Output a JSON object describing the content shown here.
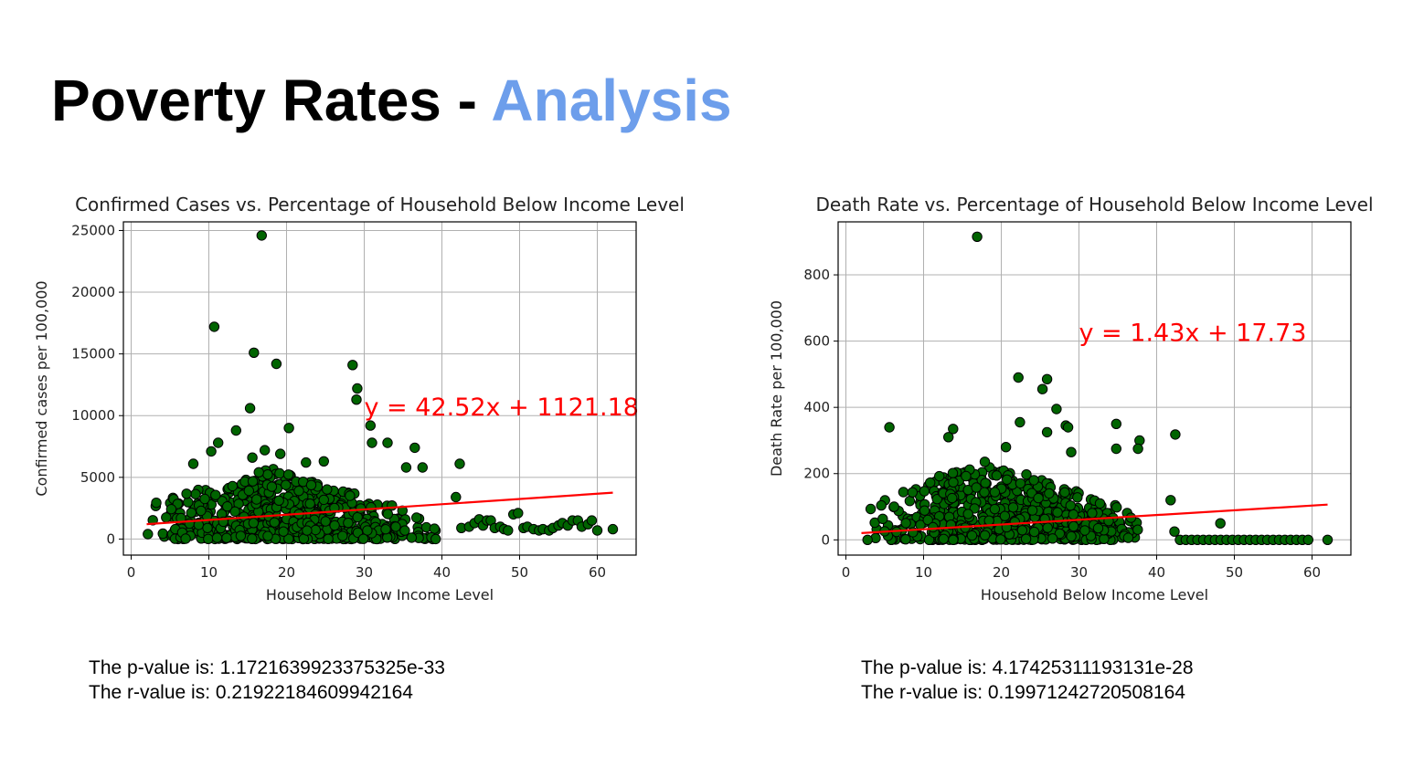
{
  "slide": {
    "title_main": "Poverty Rates - ",
    "title_accent": "Analysis",
    "title_accent_color": "#6d9eeb"
  },
  "chart_data": [
    {
      "type": "scatter",
      "title": "Confirmed Cases vs. Percentage of Household Below Income Level",
      "xlabel": "Household Below Income Level",
      "ylabel": "Confirmed cases per 100,000",
      "xlim": [
        -1,
        65
      ],
      "ylim": [
        -1300,
        25700
      ],
      "xticks": [
        0,
        10,
        20,
        30,
        40,
        50,
        60
      ],
      "yticks": [
        0,
        5000,
        10000,
        15000,
        20000,
        25000
      ],
      "grid": true,
      "point_color": "#006400",
      "point_edge_color": "#000000",
      "regression": {
        "slope": 42.52,
        "intercept": 1121.18,
        "x_range": [
          2,
          62
        ],
        "equation": "y = 42.52x + 1121.18",
        "equation_pos": [
          30,
          10000
        ],
        "color": "#ff0000"
      },
      "cluster": {
        "n": 700,
        "x_range": [
          2,
          40
        ],
        "x_peak": 18,
        "y_max": 5800,
        "seed": 7
      },
      "points": [
        [
          16.8,
          24600
        ],
        [
          10.7,
          17200
        ],
        [
          15.8,
          15100
        ],
        [
          18.7,
          14200
        ],
        [
          28.5,
          14100
        ],
        [
          29.1,
          12200
        ],
        [
          29.0,
          11300
        ],
        [
          15.3,
          10600
        ],
        [
          30.8,
          9200
        ],
        [
          20.3,
          9000
        ],
        [
          13.5,
          8800
        ],
        [
          31.0,
          7800
        ],
        [
          33.0,
          7800
        ],
        [
          11.2,
          7800
        ],
        [
          10.3,
          7100
        ],
        [
          36.5,
          7400
        ],
        [
          15.6,
          6600
        ],
        [
          17.2,
          7200
        ],
        [
          19.2,
          6900
        ],
        [
          8.0,
          6100
        ],
        [
          42.3,
          6100
        ],
        [
          37.5,
          5800
        ],
        [
          35.4,
          5800
        ],
        [
          24.8,
          6300
        ],
        [
          22.5,
          6200
        ],
        [
          41.8,
          3400
        ],
        [
          42.5,
          900
        ],
        [
          43.5,
          1000
        ],
        [
          44.2,
          1300
        ],
        [
          44.8,
          1600
        ],
        [
          45.3,
          1100
        ],
        [
          45.8,
          1500
        ],
        [
          46.3,
          1500
        ],
        [
          46.8,
          900
        ],
        [
          47.5,
          1000
        ],
        [
          48.0,
          800
        ],
        [
          48.5,
          700
        ],
        [
          49.2,
          2000
        ],
        [
          49.8,
          2100
        ],
        [
          50.5,
          900
        ],
        [
          51.0,
          1000
        ],
        [
          51.8,
          800
        ],
        [
          52.5,
          700
        ],
        [
          53.0,
          800
        ],
        [
          53.8,
          700
        ],
        [
          54.3,
          900
        ],
        [
          55.0,
          1100
        ],
        [
          55.5,
          1300
        ],
        [
          56.2,
          1100
        ],
        [
          56.8,
          1500
        ],
        [
          57.5,
          1500
        ],
        [
          58.0,
          1000
        ],
        [
          58.8,
          1200
        ],
        [
          59.3,
          1500
        ],
        [
          60.0,
          700
        ],
        [
          62.0,
          800
        ]
      ],
      "stats": {
        "p_value": "The p-value is: 1.1721639923375325e-33",
        "r_value": "The r-value is: 0.21922184609942164"
      }
    },
    {
      "type": "scatter",
      "title": "Death Rate vs. Percentage of Household Below Income Level",
      "xlabel": "Household Below Income Level",
      "ylabel": "Death Rate per 100,000",
      "xlim": [
        -1,
        65
      ],
      "ylim": [
        -46,
        960
      ],
      "xticks": [
        0,
        10,
        20,
        30,
        40,
        50,
        60
      ],
      "yticks": [
        0,
        200,
        400,
        600,
        800
      ],
      "grid": true,
      "point_color": "#006400",
      "point_edge_color": "#000000",
      "regression": {
        "slope": 1.43,
        "intercept": 17.73,
        "x_range": [
          2,
          62
        ],
        "equation": "y = 1.43x + 17.73",
        "equation_pos": [
          30,
          600
        ],
        "color": "#ff0000"
      },
      "cluster": {
        "n": 650,
        "x_range": [
          2,
          39
        ],
        "x_peak": 18,
        "y_max": 240,
        "seed": 13
      },
      "points": [
        [
          16.9,
          915
        ],
        [
          22.2,
          490
        ],
        [
          25.9,
          485
        ],
        [
          25.3,
          455
        ],
        [
          27.1,
          395
        ],
        [
          28.3,
          345
        ],
        [
          28.6,
          340
        ],
        [
          22.4,
          355
        ],
        [
          13.8,
          335
        ],
        [
          13.2,
          310
        ],
        [
          5.6,
          340
        ],
        [
          34.8,
          350
        ],
        [
          25.9,
          325
        ],
        [
          42.4,
          318
        ],
        [
          37.8,
          300
        ],
        [
          37.6,
          275
        ],
        [
          34.8,
          275
        ],
        [
          20.6,
          280
        ],
        [
          29.0,
          265
        ],
        [
          41.8,
          120
        ],
        [
          48.2,
          50
        ],
        [
          42.3,
          25
        ],
        [
          62.0,
          0
        ]
      ],
      "flat_points": {
        "x_start": 43.0,
        "x_end": 60.0,
        "step": 0.75,
        "y": 0
      },
      "stats": {
        "p_value": "The p-value is: 4.17425311193131e-28",
        "r_value": "The r-value is: 0.19971242720508164"
      }
    }
  ]
}
